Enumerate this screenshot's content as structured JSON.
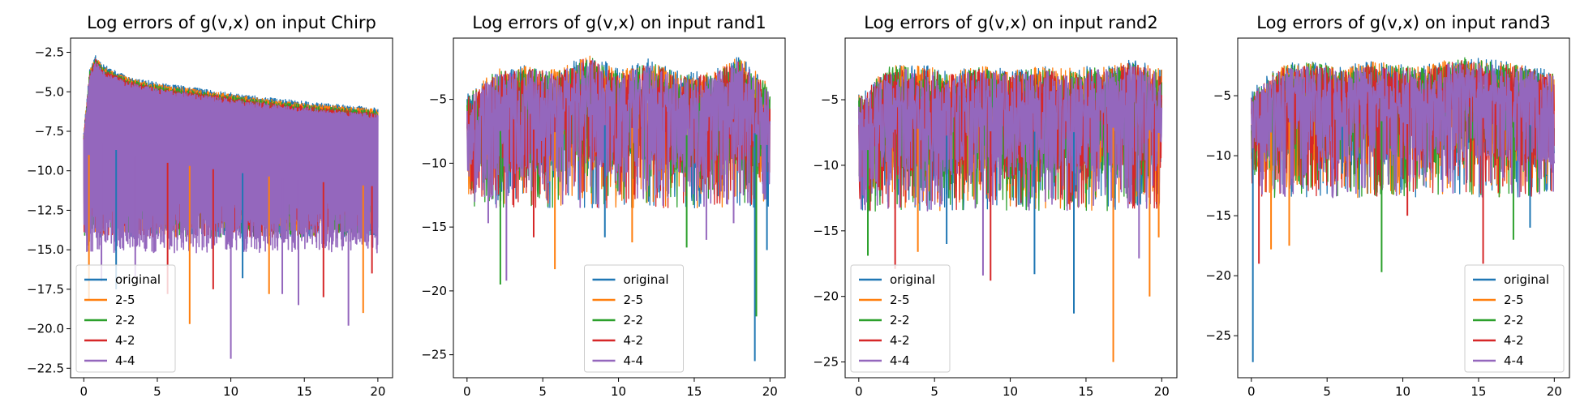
{
  "colors": {
    "original": "#1f77b4",
    "2-5": "#ff7f0e",
    "2-2": "#2ca02c",
    "4-2": "#d62728",
    "4-4": "#9467bd"
  },
  "series_names": [
    "original",
    "2-5",
    "2-2",
    "4-2",
    "4-4"
  ],
  "chart_data": [
    {
      "type": "line",
      "title": "Log errors of g(v,x) on input Chirp",
      "xlabel": "",
      "ylabel": "",
      "xlim": [
        -0.9,
        21
      ],
      "ylim": [
        -23.1,
        -1.6
      ],
      "x_ticks": [
        0,
        5,
        10,
        15,
        20
      ],
      "x_tick_labels": [
        "0",
        "5",
        "10",
        "15",
        "20"
      ],
      "y_ticks": [
        -2.5,
        -5.0,
        -7.5,
        -10.0,
        -12.5,
        -15.0,
        -17.5,
        -20.0,
        -22.5
      ],
      "y_tick_labels": [
        "−2.5",
        "−5.0",
        "−7.5",
        "−10.0",
        "−12.5",
        "−15.0",
        "−17.5",
        "−20.0",
        "−22.5"
      ],
      "legend": "lower-left",
      "grid": false,
      "pattern": "chirp",
      "upper_envelope": {
        "x": [
          0,
          0.4,
          0.8,
          1.2,
          2.0,
          3.0,
          5.0,
          8.0,
          12.0,
          16.0,
          20.0
        ],
        "y": [
          -7.5,
          -3.5,
          -2.6,
          -3.2,
          -3.6,
          -4.0,
          -4.4,
          -4.8,
          -5.3,
          -5.7,
          -6.0
        ]
      },
      "deep_spikes": [
        {
          "x": 0.35,
          "y": -18.2,
          "series": "2-5"
        },
        {
          "x": 1.2,
          "y": -17.0,
          "series": "4-4"
        },
        {
          "x": 2.2,
          "y": -17.5,
          "series": "original"
        },
        {
          "x": 3.5,
          "y": -16.8,
          "series": "4-4"
        },
        {
          "x": 5.7,
          "y": -17.8,
          "series": "4-2"
        },
        {
          "x": 7.2,
          "y": -19.7,
          "series": "2-5"
        },
        {
          "x": 8.8,
          "y": -17.5,
          "series": "4-2"
        },
        {
          "x": 10.0,
          "y": -21.9,
          "series": "4-4"
        },
        {
          "x": 10.8,
          "y": -16.8,
          "series": "original"
        },
        {
          "x": 12.6,
          "y": -17.8,
          "series": "2-5"
        },
        {
          "x": 13.5,
          "y": -17.8,
          "series": "4-4"
        },
        {
          "x": 14.6,
          "y": -18.5,
          "series": "4-4"
        },
        {
          "x": 16.3,
          "y": -18.0,
          "series": "4-2"
        },
        {
          "x": 18.0,
          "y": -19.8,
          "series": "4-4"
        },
        {
          "x": 19.0,
          "y": -19.0,
          "series": "2-5"
        },
        {
          "x": 19.6,
          "y": -16.5,
          "series": "4-2"
        }
      ]
    },
    {
      "type": "line",
      "title": "Log errors of g(v,x) on input rand1",
      "xlabel": "",
      "ylabel": "",
      "xlim": [
        -0.9,
        21
      ],
      "ylim": [
        -26.8,
        -0.2
      ],
      "x_ticks": [
        0,
        5,
        10,
        15,
        20
      ],
      "x_tick_labels": [
        "0",
        "5",
        "10",
        "15",
        "20"
      ],
      "y_ticks": [
        -5,
        -10,
        -15,
        -20,
        -25
      ],
      "y_tick_labels": [
        "−5",
        "−10",
        "−15",
        "−20",
        "−25"
      ],
      "legend": "lower-center",
      "grid": false,
      "pattern": "random",
      "upper_envelope": {
        "x": [
          0,
          2,
          4,
          6,
          8,
          10,
          12,
          14,
          16,
          18,
          20
        ],
        "y": [
          -4.5,
          -2.5,
          -2.3,
          -2.6,
          -1.3,
          -2.6,
          -1.8,
          -2.8,
          -2.8,
          -1.5,
          -3.8
        ]
      },
      "deep_spikes": [
        {
          "x": 1.4,
          "y": -14.7,
          "series": "4-4"
        },
        {
          "x": 2.2,
          "y": -19.5,
          "series": "2-2"
        },
        {
          "x": 2.6,
          "y": -19.2,
          "series": "4-4"
        },
        {
          "x": 4.4,
          "y": -15.8,
          "series": "4-2"
        },
        {
          "x": 5.8,
          "y": -18.3,
          "series": "2-5"
        },
        {
          "x": 9.1,
          "y": -15.8,
          "series": "original"
        },
        {
          "x": 10.9,
          "y": -16.2,
          "series": "2-5"
        },
        {
          "x": 14.5,
          "y": -16.6,
          "series": "2-2"
        },
        {
          "x": 15.8,
          "y": -16.0,
          "series": "4-4"
        },
        {
          "x": 17.6,
          "y": -14.7,
          "series": "4-4"
        },
        {
          "x": 19.0,
          "y": -25.5,
          "series": "original"
        },
        {
          "x": 19.1,
          "y": -22.0,
          "series": "2-2"
        },
        {
          "x": 19.8,
          "y": -16.8,
          "series": "original"
        }
      ]
    },
    {
      "type": "line",
      "title": "Log errors of g(v,x) on input rand2",
      "xlabel": "",
      "ylabel": "",
      "xlim": [
        -0.9,
        21
      ],
      "ylim": [
        -26.2,
        -0.3
      ],
      "x_ticks": [
        0,
        5,
        10,
        15,
        20
      ],
      "x_tick_labels": [
        "0",
        "5",
        "10",
        "15",
        "20"
      ],
      "y_ticks": [
        -5,
        -10,
        -15,
        -20,
        -25
      ],
      "y_tick_labels": [
        "−5",
        "−10",
        "−15",
        "−20",
        "−25"
      ],
      "legend": "lower-left",
      "grid": false,
      "pattern": "random",
      "upper_envelope": {
        "x": [
          0,
          2,
          4,
          6,
          8,
          10,
          12,
          14,
          16,
          18,
          20
        ],
        "y": [
          -4.5,
          -2.3,
          -2.2,
          -2.8,
          -2.3,
          -2.6,
          -2.4,
          -2.5,
          -2.3,
          -1.9,
          -2.6
        ]
      },
      "deep_spikes": [
        {
          "x": 0.6,
          "y": -16.9,
          "series": "2-2"
        },
        {
          "x": 2.4,
          "y": -17.9,
          "series": "4-2"
        },
        {
          "x": 3.9,
          "y": -16.6,
          "series": "2-5"
        },
        {
          "x": 5.8,
          "y": -16.0,
          "series": "original"
        },
        {
          "x": 8.2,
          "y": -18.4,
          "series": "4-4"
        },
        {
          "x": 8.7,
          "y": -18.8,
          "series": "4-2"
        },
        {
          "x": 11.6,
          "y": -18.3,
          "series": "original"
        },
        {
          "x": 14.2,
          "y": -21.3,
          "series": "original"
        },
        {
          "x": 16.8,
          "y": -25.0,
          "series": "2-5"
        },
        {
          "x": 18.5,
          "y": -17.1,
          "series": "4-4"
        },
        {
          "x": 19.2,
          "y": -20.0,
          "series": "2-5"
        },
        {
          "x": 19.8,
          "y": -15.5,
          "series": "2-5"
        }
      ]
    },
    {
      "type": "line",
      "title": "Log errors of g(v,x) on input rand3",
      "xlabel": "",
      "ylabel": "",
      "xlim": [
        -0.9,
        21
      ],
      "ylim": [
        -28.5,
        -0.2
      ],
      "x_ticks": [
        0,
        5,
        10,
        15,
        20
      ],
      "x_tick_labels": [
        "0",
        "5",
        "10",
        "15",
        "20"
      ],
      "y_ticks": [
        -5,
        -10,
        -15,
        -20,
        -25
      ],
      "y_tick_labels": [
        "−5",
        "−10",
        "−15",
        "−20",
        "−25"
      ],
      "legend": "lower-right",
      "grid": false,
      "pattern": "random",
      "upper_envelope": {
        "x": [
          0,
          2,
          4,
          6,
          8,
          10,
          12,
          14,
          16,
          18,
          20
        ],
        "y": [
          -4.5,
          -2.3,
          -2.0,
          -2.6,
          -2.0,
          -2.4,
          -2.2,
          -1.6,
          -2.0,
          -2.3,
          -3.0
        ]
      },
      "deep_spikes": [
        {
          "x": 0.1,
          "y": -27.2,
          "series": "original"
        },
        {
          "x": 0.5,
          "y": -19.0,
          "series": "4-2"
        },
        {
          "x": 1.3,
          "y": -17.8,
          "series": "2-5"
        },
        {
          "x": 2.5,
          "y": -17.5,
          "series": "2-5"
        },
        {
          "x": 6.0,
          "y": -11.5,
          "series": "original"
        },
        {
          "x": 8.6,
          "y": -19.7,
          "series": "2-2"
        },
        {
          "x": 10.3,
          "y": -15.0,
          "series": "4-2"
        },
        {
          "x": 15.3,
          "y": -19.0,
          "series": "4-2"
        },
        {
          "x": 17.3,
          "y": -17.0,
          "series": "2-2"
        },
        {
          "x": 18.4,
          "y": -16.0,
          "series": "original"
        }
      ]
    }
  ]
}
